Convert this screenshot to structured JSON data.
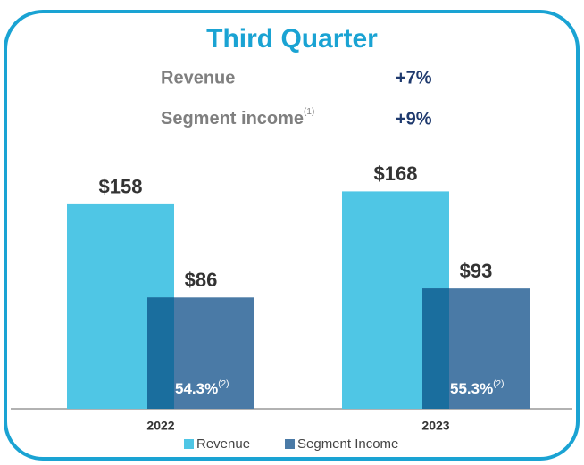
{
  "chart_data": {
    "type": "bar",
    "title": "Third Quarter",
    "growth": [
      {
        "label": "Revenue",
        "value": "+7%"
      },
      {
        "label": "Segment income",
        "note": "(1)",
        "value": "+9%"
      }
    ],
    "categories": [
      "2022",
      "2023"
    ],
    "series": [
      {
        "name": "Revenue",
        "color": "#4fc6e5",
        "values": [
          158,
          168
        ],
        "value_labels": [
          "$158",
          "$168"
        ]
      },
      {
        "name": "Segment Income",
        "color": "#4a7aa6",
        "values": [
          86,
          93
        ],
        "value_labels": [
          "$86",
          "$93"
        ]
      }
    ],
    "margins": [
      {
        "label": "54.3%",
        "note": "(2)"
      },
      {
        "label": "55.3%",
        "note": "(2)"
      }
    ],
    "overlap_color": "#1a6e9e",
    "legend": "bottom"
  }
}
